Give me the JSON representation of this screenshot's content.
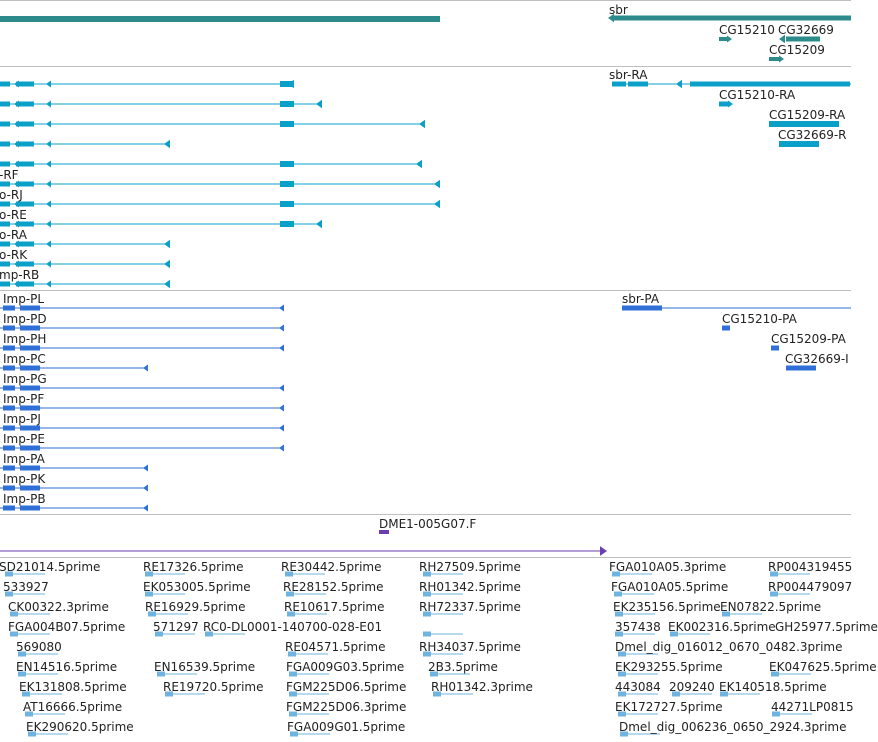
{
  "colors": {
    "gene": "#2e8b8b",
    "transcript": "#0aa0c8",
    "protein": "#2f6fd6",
    "est": "#6a3fb0",
    "cdna": "#6fb4de",
    "separator": "#bfbfbf"
  },
  "tracks": {
    "gene": {
      "labels": [
        "sbr",
        "CG15210",
        "CG32669",
        "CG15209"
      ]
    },
    "transcript": {
      "labels": [
        "sbr-RA",
        "CG15210-RA",
        "CG15209-RA",
        "CG32669-R",
        "-RF",
        "o-RJ",
        "o-RE",
        "o-RA",
        "o-RK",
        "mp-RB"
      ]
    },
    "protein": {
      "labels": [
        "Imp-PL",
        "Imp-PD",
        "Imp-PH",
        "Imp-PC",
        "Imp-PG",
        "Imp-PF",
        "Imp-PJ",
        "Imp-PE",
        "Imp-PA",
        "Imp-PK",
        "Imp-PB",
        "sbr-PA",
        "CG15210-PA",
        "CG15209-PA",
        "CG32669-I"
      ]
    },
    "est": {
      "labels": [
        "DME1-005G07.F"
      ]
    },
    "cdna": {
      "labels": [
        "SD21014.5prime",
        "RE17326.5prime",
        "RE30442.5prime",
        "RH27509.5prime",
        "FGA010A05.3prime",
        "RP004319455",
        "533927",
        "EK053005.5prime",
        "RE28152.5prime",
        "RH01342.5prime",
        "FGA010A05.5prime",
        "RP004479097",
        "CK00322.3prime",
        "RE16929.5prime",
        "RE10617.5prime",
        "RH72337.5prime",
        "EK235156.5prime",
        "EN07822.5prime",
        "FGA004B07.5prime",
        "571297",
        "RC0-DL0001-140700-028-E01",
        "357438",
        "EK002316.5prime",
        "GH25977.5prime",
        "569080",
        "RE04571.5prime",
        "RH34037.5prime",
        "Dmel_dig_016012_0670_0482.3prime",
        "EN14516.5prime",
        "EN16539.5prime",
        "FGA009G03.5prime",
        "2B3.5prime",
        "EK293255.5prime",
        "EK047625.5prime",
        "EK131808.5prime",
        "RE19720.5prime",
        "FGM225D06.5prime",
        "RH01342.3prime",
        "443084",
        "209240",
        "EK140518.5prime",
        "AT16666.5prime",
        "FGM225D06.3prime",
        "EK172727.5prime",
        "44271LP0815",
        "EK290620.5prime",
        "FGA009G01.5prime",
        "Dmel_dig_006236_0650_2924.3prime"
      ]
    }
  }
}
